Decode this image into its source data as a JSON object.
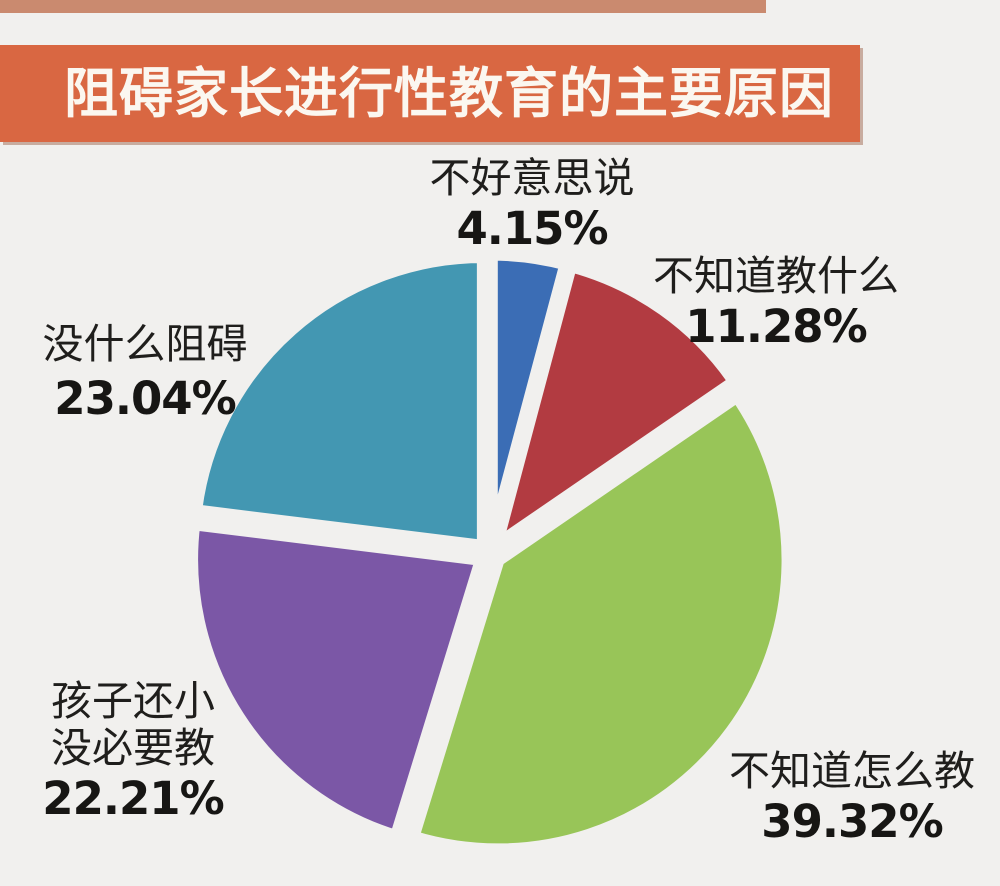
{
  "page": {
    "background_color": "#f1f0ee",
    "top_strip_color": "#ca8a6f"
  },
  "header": {
    "title": "阻碍家长进行性教育的主要原因",
    "bg_color": "#d96742",
    "text_color": "#fbf7f0"
  },
  "chart_data": {
    "type": "pie",
    "title": "阻碍家长进行性教育的主要原因",
    "direction": "clockwise",
    "start_angle_deg": 0,
    "legend_position": "none",
    "labels_outside": true,
    "exploded": true,
    "slices": [
      {
        "label": "不好意思说",
        "value": 4.15,
        "display": "4.15%",
        "color": "#3b6db5"
      },
      {
        "label": "不知道教什么",
        "value": 11.28,
        "display": "11.28%",
        "color": "#b23b41"
      },
      {
        "label": "不知道怎么教",
        "value": 39.32,
        "display": "39.32%",
        "color": "#98c558"
      },
      {
        "label": "孩子还小没必要教",
        "value": 22.21,
        "display": "22.21%",
        "color": "#7b57a6"
      },
      {
        "label": "没什么阻碍",
        "value": 23.04,
        "display": "23.04%",
        "color": "#4397b2"
      }
    ]
  },
  "callouts": [
    {
      "line1": "不好意思说",
      "line2": "",
      "pct": "4.15%"
    },
    {
      "line1": "不知道教什么",
      "line2": "",
      "pct": "11.28%"
    },
    {
      "line1": "没什么阻碍",
      "line2": "",
      "pct": "23.04%"
    },
    {
      "line1": "孩子还小",
      "line2": "没必要教",
      "pct": "22.21%"
    },
    {
      "line1": "不知道怎么教",
      "line2": "",
      "pct": "39.32%"
    }
  ]
}
